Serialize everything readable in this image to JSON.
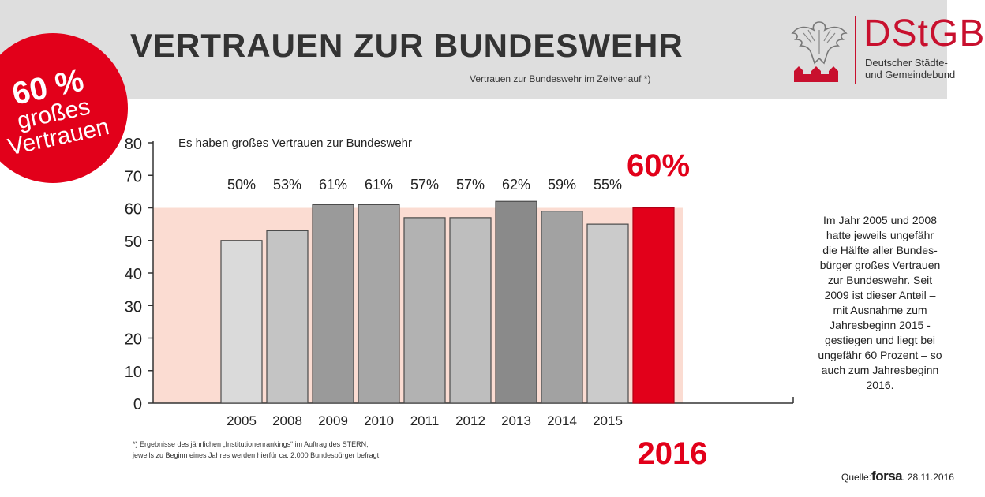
{
  "header": {
    "title": "VERTRAUEN ZUR BUNDESWEHR",
    "subtitle": "Vertrauen zur Bundeswehr im Zeitverlauf *)"
  },
  "logo": {
    "text": "DStGB",
    "line1": "Deutscher Städte-",
    "line2": "und Gemeindebund"
  },
  "badge": {
    "line1": "60 %",
    "line2": "großes",
    "line3": "Vertrauen"
  },
  "side_note": "Im Jahr 2005 und 2008\nhatte jeweils ungefähr\ndie Hälfte aller Bundes-\nbürger großes Vertrauen\nzur Bundeswehr. Seit\n2009 ist dieser Anteil –\nmit Ausnahme zum\nJahresbeginn 2015 -\ngestiegen und liegt bei\nungefähr 60 Prozent – so\nauch zum Jahresbeginn\n2016.",
  "footnote": "*) Ergebnisse des jährlichen „Institutionenrankings“ im Auftrag des STERN;\njeweils zu Beginn eines Jahres werden hierfür ca. 2.000 Bundesbürger befragt",
  "source": {
    "label": "Quelle:",
    "brand": "forsa",
    "date": ". 28.11.2016"
  },
  "colors": {
    "highlight": "#e2001a",
    "band": "#fbdcd2",
    "header_bg": "#dedede"
  },
  "chart_data": {
    "type": "bar",
    "title": "Es haben großes Vertrauen zur Bundeswehr",
    "categories": [
      "2005",
      "2008",
      "2009",
      "2010",
      "2011",
      "2012",
      "2013",
      "2014",
      "2015",
      "2016"
    ],
    "values": [
      50,
      53,
      61,
      61,
      57,
      57,
      62,
      59,
      55,
      60
    ],
    "value_labels": [
      "50%",
      "53%",
      "61%",
      "61%",
      "57%",
      "57%",
      "62%",
      "59%",
      "55%",
      "60%"
    ],
    "bar_colors": [
      "#dadada",
      "#c4c4c4",
      "#9a9a9a",
      "#a6a6a6",
      "#b2b2b2",
      "#bebebe",
      "#8a8a8a",
      "#a2a2a2",
      "#cbcbcb",
      "#e2001a"
    ],
    "highlight_index": 9,
    "yticks": [
      0,
      10,
      20,
      30,
      40,
      50,
      60,
      70,
      80
    ],
    "ylim": [
      0,
      80
    ],
    "band_value": 60,
    "xlabel": "",
    "ylabel": ""
  }
}
